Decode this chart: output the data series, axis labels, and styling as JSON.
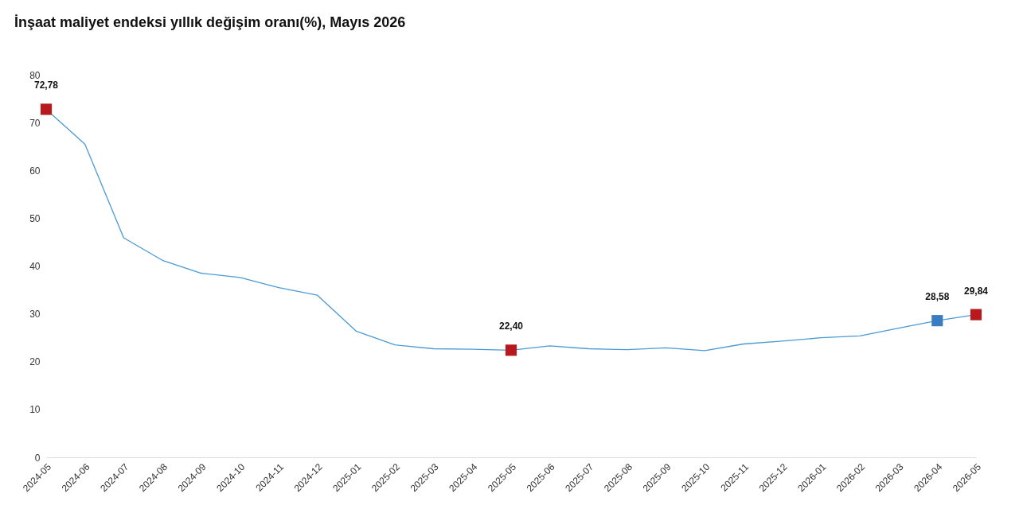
{
  "chart_data": {
    "type": "line",
    "title": "İnşaat maliyet endeksi yıllık değişim oranı(%), Mayıs 2026",
    "categories": [
      "2024-05",
      "2024-06",
      "2024-07",
      "2024-08",
      "2024-09",
      "2024-10",
      "2024-11",
      "2024-12",
      "2025-01",
      "2025-02",
      "2025-03",
      "2025-04",
      "2025-05",
      "2025-06",
      "2025-07",
      "2025-08",
      "2025-09",
      "2025-10",
      "2025-11",
      "2025-12",
      "2026-01",
      "2026-02",
      "2026-03",
      "2026-04",
      "2026-05"
    ],
    "ylim": [
      0,
      80
    ],
    "yticks": [
      0,
      10,
      20,
      30,
      40,
      50,
      60,
      70,
      80
    ],
    "series": [
      {
        "color": "#4a9ad4",
        "marker": "none",
        "values": [
          72.78,
          65.5,
          45.9,
          41.2,
          38.5,
          37.6,
          35.5,
          33.9,
          26.4,
          23.5,
          22.7,
          22.6,
          22.4,
          23.3,
          22.7,
          22.5,
          22.9,
          22.3,
          23.7,
          24.3,
          25.0,
          25.4,
          27.0,
          28.58,
          29.84
        ]
      },
      {
        "type": "scatter",
        "marker": "square",
        "values": [
          72.78,
          null,
          null,
          null,
          null,
          null,
          null,
          null,
          null,
          null,
          null,
          null,
          22.4,
          null,
          null,
          null,
          null,
          null,
          null,
          null,
          null,
          null,
          null,
          28.58,
          29.84
        ],
        "colors": [
          "#b8191e",
          null,
          null,
          null,
          null,
          null,
          null,
          null,
          null,
          null,
          null,
          null,
          "#b8191e",
          null,
          null,
          null,
          null,
          null,
          null,
          null,
          null,
          null,
          null,
          "#3a7cc0",
          "#b8191e"
        ],
        "value_labels": [
          "72,78",
          null,
          null,
          null,
          null,
          null,
          null,
          null,
          null,
          null,
          null,
          null,
          "22,40",
          null,
          null,
          null,
          null,
          null,
          null,
          null,
          null,
          null,
          null,
          "28,58",
          "29,84"
        ]
      }
    ]
  }
}
